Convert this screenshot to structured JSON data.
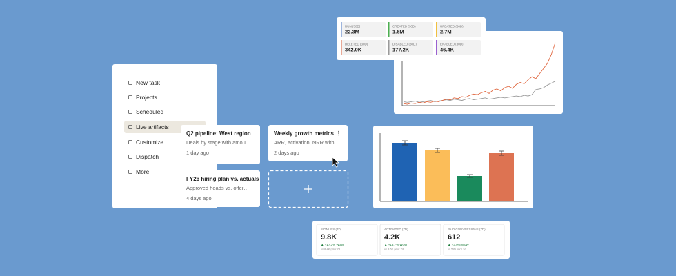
{
  "sidebar": {
    "items": [
      "New task",
      "Projects",
      "Scheduled",
      "Live artifacts",
      "Customize",
      "Dispatch",
      "More"
    ],
    "active": 3
  },
  "cards": [
    {
      "title": "Q2 pipeline: West region",
      "description": "Deals by stage with amou…",
      "time": "1 day ago"
    },
    {
      "title": "Weekly growth metrics",
      "description": "ARR, activation, NRR with…",
      "time": "2 days ago"
    },
    {
      "title": "FY26 hiring plan vs. actuals",
      "description": "Approved heads vs. offer…",
      "time": "4 days ago"
    }
  ],
  "stats": [
    {
      "label": "RUN (30D)",
      "value": "22.3M",
      "color": "#4a78c8"
    },
    {
      "label": "CREATED (30D)",
      "value": "1.6M",
      "color": "#4caf50"
    },
    {
      "label": "UPDATED (30D)",
      "value": "2.7M",
      "color": "#f0c040"
    },
    {
      "label": "DELETED (30D)",
      "value": "342.0K",
      "color": "#e0603a"
    },
    {
      "label": "DISABLED (30D)",
      "value": "177.2K",
      "color": "#9a9a9a"
    },
    {
      "label": "ENABLED (30D)",
      "value": "46.4K",
      "color": "#9a60d0"
    }
  ],
  "line_chart": {
    "ylim": [
      0,
      100
    ],
    "series": [
      {
        "color": "#e0673f",
        "values": [
          3,
          2,
          4,
          3,
          5,
          4,
          6,
          5,
          7,
          6,
          8,
          10,
          9,
          12,
          11,
          14,
          13,
          16,
          18,
          17,
          20,
          22,
          19,
          24,
          26,
          23,
          28,
          30,
          27,
          33,
          36,
          34,
          40,
          45,
          42,
          50,
          58,
          66,
          80,
          98
        ]
      },
      {
        "color": "#9a9a9a",
        "values": [
          6,
          5,
          6,
          7,
          5,
          6,
          7,
          8,
          6,
          7,
          8,
          9,
          8,
          10,
          9,
          8,
          10,
          11,
          9,
          10,
          11,
          12,
          10,
          11,
          12,
          13,
          12,
          13,
          14,
          15,
          14,
          16,
          15,
          17,
          25,
          26,
          28,
          32,
          35,
          38
        ]
      }
    ]
  },
  "bar_chart": {
    "ylim": [
      0,
      100
    ],
    "values": [
      85,
      74,
      37,
      70
    ],
    "errors": [
      3,
      3,
      2,
      3
    ],
    "colors": [
      "#1f63b3",
      "#fbbd59",
      "#1a8a5c",
      "#dd7352"
    ]
  },
  "kpis": [
    {
      "label": "SIGNUPS (7D)",
      "value": "9.8K",
      "change": "▲ +17.3% WoW",
      "prior": "vs 8.4K prior 7d"
    },
    {
      "label": "ACTIVATED (7D)",
      "value": "4.2K",
      "change": "▲ +13.7% WoW",
      "prior": "vs 3.6K prior 7d"
    },
    {
      "label": "PAID CONVERSIONS (7D)",
      "value": "612",
      "change": "▲ +3.9% WoW",
      "prior": "vs 589 prior 7d"
    }
  ]
}
